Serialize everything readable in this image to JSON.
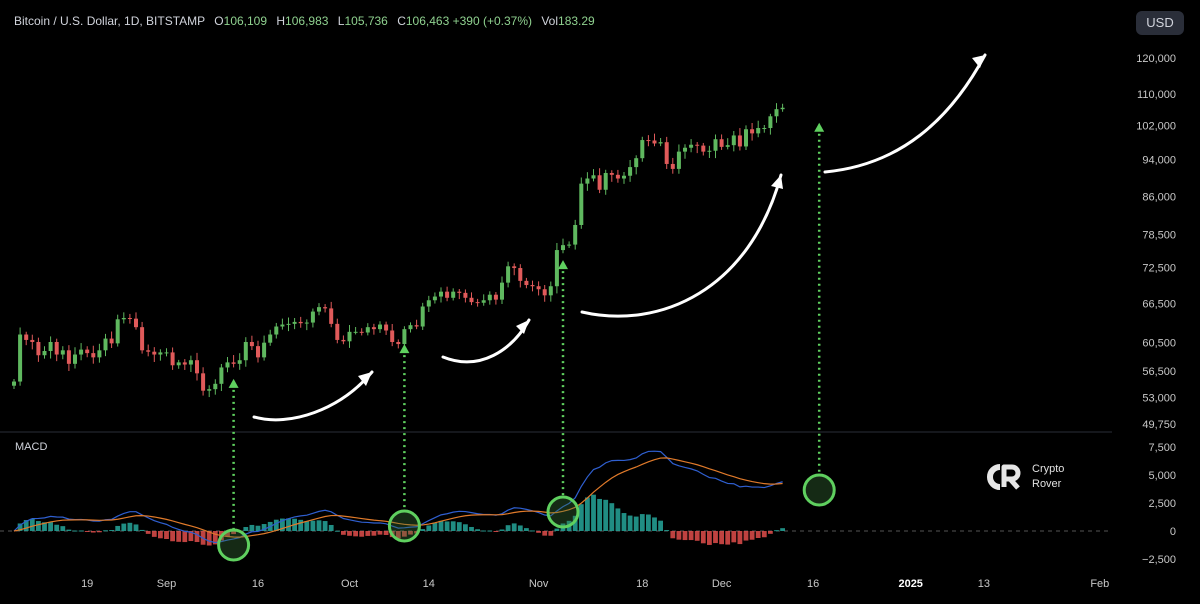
{
  "header": {
    "symbol": "Bitcoin / U.S. Dollar, 1D, BITSTAMP",
    "open_label": "O",
    "open": "106,109",
    "high_label": "H",
    "high": "106,983",
    "low_label": "L",
    "low": "105,736",
    "close_label": "C",
    "close": "106,463",
    "change": "+390 (+0.37%)",
    "vol_label": "Vol",
    "vol": "183.29"
  },
  "currency_button": "USD",
  "macd_label": "MACD",
  "watermark": {
    "line1": "Crypto",
    "line2": "Rover"
  },
  "colors": {
    "up": "#5fb85f",
    "down": "#e05a5a",
    "macd_line": "#2f5fd0",
    "signal_line": "#e07a2a",
    "hist_pos": "#26a69a",
    "hist_neg": "#ef5350",
    "annotation": "#5fd05f"
  },
  "chart_data": {
    "type": "candlestick",
    "price_axis": {
      "ticks": [
        120000,
        110000,
        102000,
        94000,
        86000,
        78500,
        72500,
        66500,
        60500,
        56500,
        53000,
        49750
      ],
      "tick_labels": [
        "120,000",
        "110,000",
        "102,000",
        "94,000",
        "86,000",
        "78,500",
        "72,500",
        "66,500",
        "60,500",
        "56,500",
        "53,000",
        "49,750"
      ],
      "scale": "log"
    },
    "macd_axis": {
      "ticks": [
        7500,
        5000,
        2500,
        0,
        -2500
      ],
      "tick_labels": [
        "7,500",
        "5,000",
        "2,500",
        "0",
        "−2,500"
      ],
      "range": [
        -3400,
        8600
      ]
    },
    "time_axis": {
      "labels": [
        "19",
        "Sep",
        "16",
        "Oct",
        "14",
        "Nov",
        "18",
        "Dec",
        "16",
        "2025",
        "13",
        "Feb"
      ],
      "dates": [
        "2024-08-19",
        "2024-09-01",
        "2024-09-16",
        "2024-10-01",
        "2024-10-14",
        "2024-11-01",
        "2024-11-18",
        "2024-12-01",
        "2024-12-16",
        "2025-01-01",
        "2025-01-13",
        "2025-02-01"
      ],
      "bold": [
        "2025"
      ]
    },
    "first_date": "2024-08-07",
    "closes": [
      55100,
      61700,
      60900,
      60600,
      58700,
      59300,
      60600,
      58800,
      59400,
      57500,
      58800,
      59500,
      59000,
      58400,
      59400,
      61100,
      60400,
      64000,
      64200,
      64100,
      62800,
      59400,
      59200,
      58800,
      59100,
      59100,
      57300,
      57700,
      57400,
      58000,
      56200,
      53900,
      54100,
      54800,
      57000,
      57700,
      57500,
      58000,
      60600,
      60000,
      58400,
      60500,
      61700,
      62900,
      63200,
      63300,
      63600,
      63400,
      63500,
      65200,
      65900,
      65700,
      63300,
      60900,
      60700,
      62100,
      62100,
      62000,
      62800,
      62500,
      63200,
      62300,
      60600,
      60300,
      62500,
      63100,
      62900,
      66000,
      67000,
      67600,
      68400,
      67400,
      68400,
      68200,
      67400,
      66700,
      66600,
      67000,
      67900,
      67100,
      69900,
      72700,
      72400,
      70200,
      69500,
      69300,
      68800,
      67800,
      69300,
      75600,
      76500,
      76600,
      80300,
      88700,
      89800,
      90500,
      87400,
      91000,
      90600,
      89800,
      90400,
      92300,
      94300,
      98500,
      98400,
      97700,
      98000,
      93000,
      91900,
      95800,
      96700,
      97400,
      97200,
      95800,
      96000,
      98700,
      96900,
      97300,
      99600,
      97000,
      101100,
      100100,
      101400,
      101400,
      104300,
      106100,
      106463
    ],
    "annotations": {
      "arrows": 5,
      "circled_macd_crosses": 4,
      "vertical_markers": [
        "2024-09-12",
        "2024-10-10",
        "2024-11-05",
        "2024-12-17"
      ]
    }
  }
}
